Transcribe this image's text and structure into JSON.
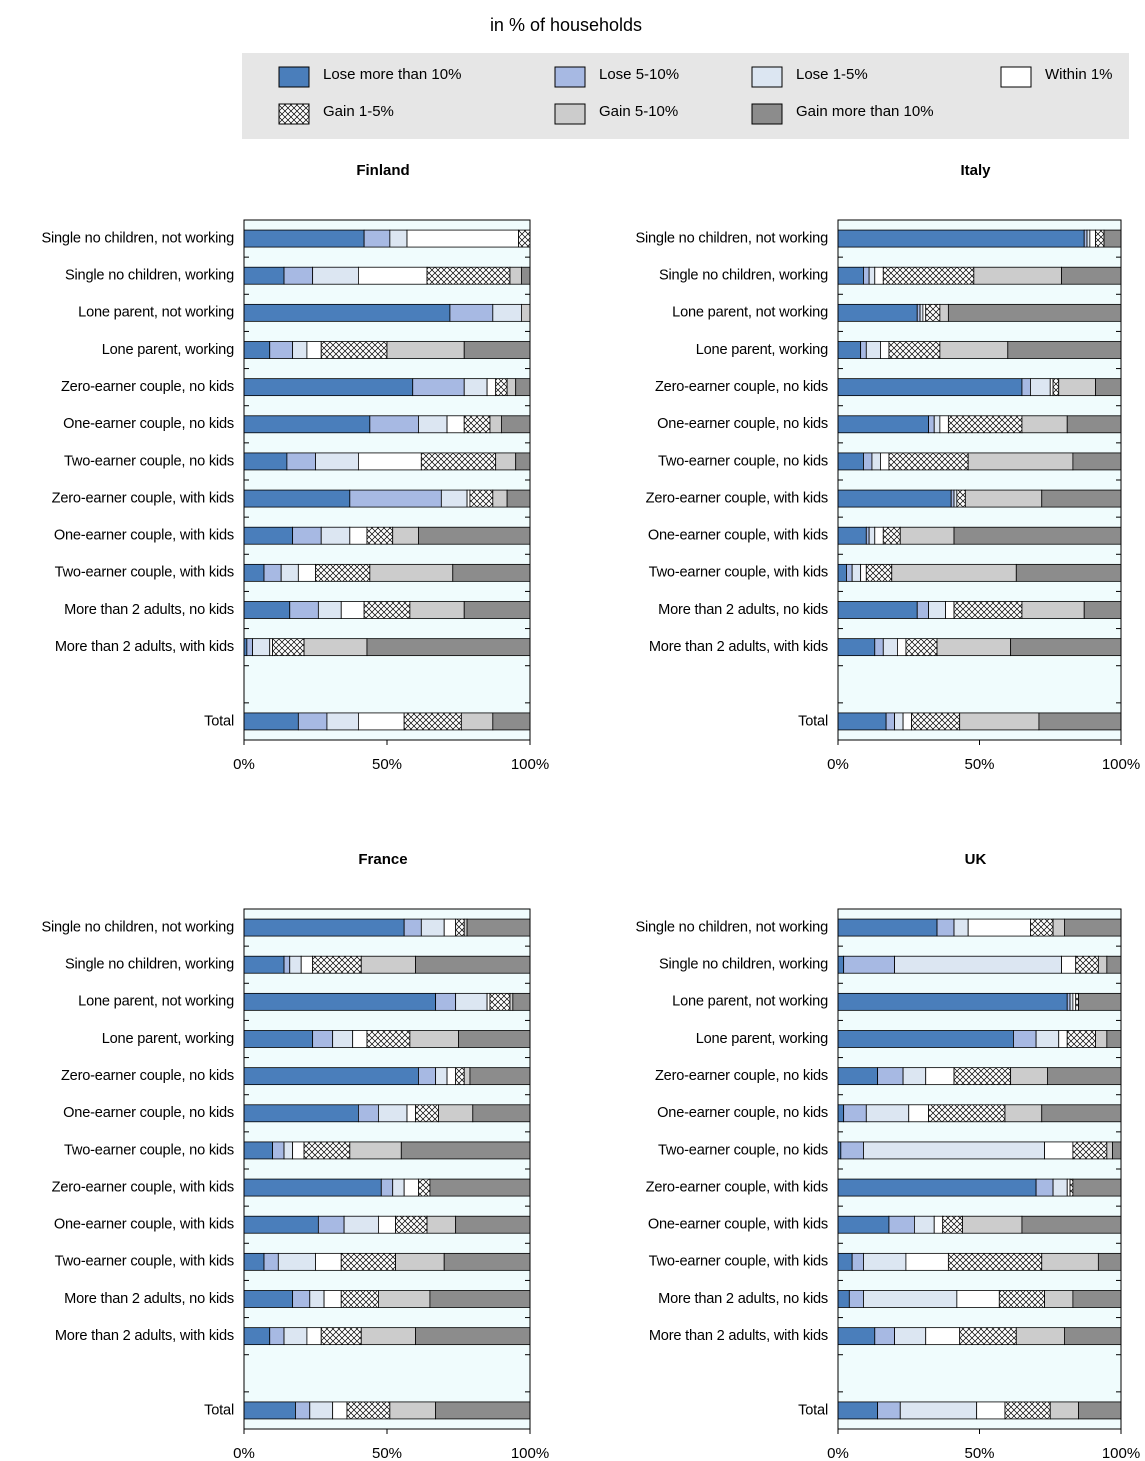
{
  "title": "in % of households",
  "chart_data": [
    {
      "type": "bar",
      "orientation": "horizontal",
      "stacked": true,
      "title": "Finland",
      "categories": [
        "Single no children, not working",
        "Single no children, working",
        "Lone parent, not working",
        "Lone parent, working",
        "Zero-earner couple, no kids",
        "One-earner couple, no kids",
        "Two-earner couple, no kids",
        "Zero-earner couple, with kids",
        "One-earner couple, with kids",
        "Two-earner couple, with kids",
        "More than 2 adults, no kids",
        "More than 2 adults, with kids",
        null,
        "Total"
      ],
      "series": [
        {
          "name": "Lose more than 10%",
          "color": "#4a7ebb",
          "values": [
            42,
            14,
            72,
            9,
            59,
            44,
            15,
            37,
            17,
            7,
            16,
            1,
            null,
            19
          ]
        },
        {
          "name": "Lose 5-10%",
          "color": "#a7b9e3",
          "values": [
            9,
            10,
            15,
            8,
            18,
            17,
            10,
            32,
            10,
            6,
            10,
            2,
            null,
            10
          ]
        },
        {
          "name": "Lose 1-5%",
          "color": "#dce6f2",
          "values": [
            6,
            16,
            10,
            5,
            8,
            10,
            15,
            9,
            10,
            6,
            8,
            6,
            null,
            11
          ]
        },
        {
          "name": "Within 1%",
          "color": "#ffffff",
          "values": [
            39,
            24,
            0,
            5,
            3,
            6,
            22,
            1,
            6,
            6,
            8,
            1,
            null,
            16
          ]
        },
        {
          "name": "Gain 1-5%",
          "color": "#ffffff",
          "pattern": "crosshatch",
          "values": [
            4,
            29,
            0,
            23,
            4,
            9,
            26,
            8,
            9,
            19,
            16,
            11,
            null,
            20
          ]
        },
        {
          "name": "Gain 5-10%",
          "color": "#cccccc",
          "values": [
            0,
            4,
            3,
            27,
            3,
            4,
            7,
            5,
            9,
            29,
            19,
            22,
            null,
            11
          ]
        },
        {
          "name": "Gain more than 10%",
          "color": "#8c8c8c",
          "values": [
            0,
            3,
            0,
            23,
            5,
            10,
            5,
            8,
            39,
            27,
            23,
            57,
            null,
            13
          ]
        }
      ],
      "xlim": [
        0,
        100
      ],
      "xticks": [
        {
          "value": 0,
          "label": "0%"
        },
        {
          "value": 50,
          "label": "50%"
        },
        {
          "value": 100,
          "label": "100%"
        }
      ]
    },
    {
      "type": "bar",
      "orientation": "horizontal",
      "stacked": true,
      "title": "Italy",
      "categories": [
        "Single no children, not working",
        "Single no children, working",
        "Lone parent, not working",
        "Lone parent, working",
        "Zero-earner couple, no kids",
        "One-earner couple, no kids",
        "Two-earner couple, no kids",
        "Zero-earner couple, with kids",
        "One-earner couple, with kids",
        "Two-earner couple, with kids",
        "More than 2 adults, no kids",
        "More than 2 adults, with kids",
        null,
        "Total"
      ],
      "series": [
        {
          "name": "Lose more than 10%",
          "color": "#4a7ebb",
          "values": [
            87,
            9,
            28,
            8,
            65,
            32,
            9,
            40,
            10,
            3,
            28,
            13,
            null,
            17
          ]
        },
        {
          "name": "Lose 5-10%",
          "color": "#a7b9e3",
          "values": [
            1,
            2,
            1,
            2,
            3,
            2,
            3,
            1,
            1,
            2,
            4,
            3,
            null,
            3
          ]
        },
        {
          "name": "Lose 1-5%",
          "color": "#dce6f2",
          "values": [
            1,
            2,
            1,
            5,
            7,
            2,
            3,
            1,
            2,
            3,
            6,
            5,
            null,
            3
          ]
        },
        {
          "name": "Within 1%",
          "color": "#ffffff",
          "values": [
            2,
            3,
            1,
            3,
            1,
            3,
            3,
            0,
            3,
            2,
            3,
            3,
            null,
            3
          ]
        },
        {
          "name": "Gain 1-5%",
          "color": "#ffffff",
          "pattern": "crosshatch",
          "values": [
            3,
            32,
            5,
            18,
            2,
            26,
            28,
            3,
            6,
            9,
            24,
            11,
            null,
            17
          ]
        },
        {
          "name": "Gain 5-10%",
          "color": "#cccccc",
          "values": [
            0,
            31,
            3,
            24,
            13,
            16,
            37,
            27,
            19,
            44,
            22,
            26,
            null,
            28
          ]
        },
        {
          "name": "Gain more than 10%",
          "color": "#8c8c8c",
          "values": [
            6,
            21,
            61,
            40,
            9,
            19,
            17,
            28,
            59,
            37,
            13,
            39,
            null,
            29
          ]
        }
      ],
      "xlim": [
        0,
        100
      ],
      "xticks": [
        {
          "value": 0,
          "label": "0%"
        },
        {
          "value": 50,
          "label": "50%"
        },
        {
          "value": 100,
          "label": "100%"
        }
      ]
    },
    {
      "type": "bar",
      "orientation": "horizontal",
      "stacked": true,
      "title": "France",
      "categories": [
        "Single no children, not working",
        "Single no children, working",
        "Lone parent, not working",
        "Lone parent, working",
        "Zero-earner couple, no kids",
        "One-earner couple, no kids",
        "Two-earner couple, no kids",
        "Zero-earner couple, with kids",
        "One-earner couple, with kids",
        "Two-earner couple, with kids",
        "More than 2 adults, no kids",
        "More than 2 adults, with kids",
        null,
        "Total"
      ],
      "series": [
        {
          "name": "Lose more than 10%",
          "color": "#4a7ebb",
          "values": [
            56,
            14,
            67,
            24,
            61,
            40,
            10,
            48,
            26,
            7,
            17,
            9,
            null,
            18
          ]
        },
        {
          "name": "Lose 5-10%",
          "color": "#a7b9e3",
          "values": [
            6,
            2,
            7,
            7,
            6,
            7,
            4,
            4,
            9,
            5,
            6,
            5,
            null,
            5
          ]
        },
        {
          "name": "Lose 1-5%",
          "color": "#dce6f2",
          "values": [
            8,
            4,
            11,
            7,
            4,
            10,
            3,
            4,
            12,
            13,
            5,
            8,
            null,
            8
          ]
        },
        {
          "name": "Within 1%",
          "color": "#ffffff",
          "values": [
            4,
            4,
            1,
            5,
            3,
            3,
            4,
            5,
            6,
            9,
            6,
            5,
            null,
            5
          ]
        },
        {
          "name": "Gain 1-5%",
          "color": "#ffffff",
          "pattern": "crosshatch",
          "values": [
            3,
            17,
            7,
            15,
            3,
            8,
            16,
            4,
            11,
            19,
            13,
            14,
            null,
            15
          ]
        },
        {
          "name": "Gain 5-10%",
          "color": "#cccccc",
          "values": [
            1,
            19,
            1,
            17,
            2,
            12,
            18,
            0,
            10,
            17,
            18,
            19,
            null,
            16
          ]
        },
        {
          "name": "Gain more than 10%",
          "color": "#8c8c8c",
          "values": [
            22,
            40,
            6,
            25,
            21,
            20,
            45,
            35,
            26,
            30,
            35,
            40,
            null,
            33
          ]
        }
      ],
      "xlim": [
        0,
        100
      ],
      "xticks": [
        {
          "value": 0,
          "label": "0%"
        },
        {
          "value": 50,
          "label": "50%"
        },
        {
          "value": 100,
          "label": "100%"
        }
      ]
    },
    {
      "type": "bar",
      "orientation": "horizontal",
      "stacked": true,
      "title": "UK",
      "categories": [
        "Single no children, not working",
        "Single no children, working",
        "Lone parent, not working",
        "Lone parent, working",
        "Zero-earner couple, no kids",
        "One-earner couple, no kids",
        "Two-earner couple, no kids",
        "Zero-earner couple, with kids",
        "One-earner couple, with kids",
        "Two-earner couple, with kids",
        "More than 2 adults, no kids",
        "More than 2 adults, with kids",
        null,
        "Total"
      ],
      "series": [
        {
          "name": "Lose more than 10%",
          "color": "#4a7ebb",
          "values": [
            35,
            2,
            81,
            62,
            14,
            2,
            1,
            70,
            18,
            5,
            4,
            13,
            null,
            14
          ]
        },
        {
          "name": "Lose 5-10%",
          "color": "#a7b9e3",
          "values": [
            6,
            18,
            1,
            8,
            9,
            8,
            8,
            6,
            9,
            4,
            5,
            7,
            null,
            8
          ]
        },
        {
          "name": "Lose 1-5%",
          "color": "#dce6f2",
          "values": [
            5,
            59,
            1,
            8,
            8,
            15,
            64,
            5,
            7,
            15,
            33,
            11,
            null,
            27
          ]
        },
        {
          "name": "Within 1%",
          "color": "#ffffff",
          "values": [
            22,
            5,
            1,
            3,
            10,
            7,
            10,
            1,
            3,
            15,
            15,
            12,
            null,
            10
          ]
        },
        {
          "name": "Gain 1-5%",
          "color": "#ffffff",
          "pattern": "crosshatch",
          "values": [
            8,
            8,
            1,
            10,
            20,
            27,
            12,
            1,
            7,
            33,
            16,
            20,
            null,
            16
          ]
        },
        {
          "name": "Gain 5-10%",
          "color": "#cccccc",
          "values": [
            4,
            3,
            0,
            4,
            13,
            13,
            2,
            0,
            21,
            20,
            10,
            17,
            null,
            10
          ]
        },
        {
          "name": "Gain more than 10%",
          "color": "#8c8c8c",
          "values": [
            20,
            5,
            15,
            5,
            26,
            28,
            3,
            17,
            35,
            8,
            17,
            20,
            null,
            15
          ]
        }
      ],
      "xlim": [
        0,
        100
      ],
      "xticks": [
        {
          "value": 0,
          "label": "0%"
        },
        {
          "value": 50,
          "label": "50%"
        },
        {
          "value": 100,
          "label": "100%"
        }
      ]
    }
  ]
}
